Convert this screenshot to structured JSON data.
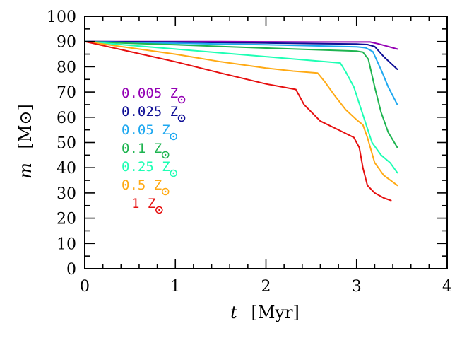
{
  "chart_data": {
    "type": "line",
    "title": "",
    "xlabel": {
      "var": "t",
      "unit": "[Myr]"
    },
    "ylabel": {
      "var": "m",
      "unit": "[M⊙]"
    },
    "xlim": [
      0,
      4
    ],
    "ylim": [
      0,
      100
    ],
    "x_ticks": [
      0,
      1,
      2,
      3,
      4
    ],
    "y_ticks": [
      0,
      10,
      20,
      30,
      40,
      50,
      60,
      70,
      80,
      90,
      100
    ],
    "x_tick_labels": [
      "0",
      "1",
      "2",
      "3",
      "4"
    ],
    "y_tick_labels": [
      "0",
      "10",
      "20",
      "30",
      "40",
      "50",
      "60",
      "70",
      "80",
      "90",
      "100"
    ],
    "grid": false,
    "legend_position": "left-middle",
    "series": [
      {
        "name": "0.005 Z⊙",
        "label": "0.005 Z",
        "color": "#9400b4",
        "x": [
          0,
          0.5,
          1.0,
          1.5,
          2.0,
          2.5,
          3.0,
          3.15,
          3.25,
          3.45
        ],
        "y": [
          90,
          90,
          90,
          90,
          89.9,
          89.8,
          89.8,
          89.8,
          89,
          87
        ]
      },
      {
        "name": "0.025 Z⊙",
        "label": "0.025 Z",
        "color": "#0f0f96",
        "x": [
          0,
          0.5,
          1.0,
          1.5,
          2.0,
          2.5,
          3.0,
          3.12,
          3.2,
          3.3,
          3.45
        ],
        "y": [
          90,
          89.9,
          89.8,
          89.6,
          89.4,
          89.2,
          89.0,
          88.8,
          88,
          84,
          79
        ]
      },
      {
        "name": "0.05 Z⊙",
        "label": "0.05 Z",
        "color": "#1ea8f0",
        "x": [
          0,
          0.5,
          1.0,
          1.5,
          2.0,
          2.5,
          3.0,
          3.1,
          3.18,
          3.28,
          3.35,
          3.45
        ],
        "y": [
          90,
          89.6,
          89.3,
          89,
          88.7,
          88.3,
          87.9,
          87.5,
          86,
          78,
          72,
          65
        ]
      },
      {
        "name": "0.1 Z⊙",
        "label": "0.1 Z",
        "color": "#1eb450",
        "x": [
          0,
          0.5,
          1.0,
          1.5,
          2.0,
          2.5,
          3.0,
          3.07,
          3.13,
          3.2,
          3.27,
          3.35,
          3.45
        ],
        "y": [
          90,
          89.3,
          88.7,
          88,
          87.4,
          86.8,
          86.2,
          85.8,
          83,
          72,
          62,
          54,
          48
        ]
      },
      {
        "name": "0.25 Z⊙",
        "label": "0.25 Z",
        "color": "#1effb4",
        "x": [
          0,
          0.5,
          1.0,
          1.5,
          2.0,
          2.5,
          2.82,
          2.88,
          2.97,
          3.07,
          3.17,
          3.27,
          3.37,
          3.45
        ],
        "y": [
          90,
          88.5,
          87,
          85.5,
          84,
          82.5,
          81.5,
          78,
          72,
          61,
          50,
          45,
          42,
          38
        ]
      },
      {
        "name": "0.5 Z⊙",
        "label": "0.5 Z",
        "color": "#ffaa14",
        "x": [
          0,
          0.5,
          1.0,
          1.5,
          2.0,
          2.3,
          2.57,
          2.65,
          2.75,
          2.88,
          3.0,
          3.07,
          3.12,
          3.2,
          3.3,
          3.45
        ],
        "y": [
          90,
          87.5,
          85,
          82,
          79.5,
          78.3,
          77.5,
          74,
          69,
          63,
          59,
          57,
          52,
          42,
          37,
          33
        ]
      },
      {
        "name": "1 Z⊙",
        "label": "1 Z",
        "color": "#e60f0f",
        "x": [
          0,
          0.5,
          1.0,
          1.5,
          2.0,
          2.33,
          2.42,
          2.6,
          2.8,
          2.97,
          3.03,
          3.07,
          3.12,
          3.2,
          3.3,
          3.38
        ],
        "y": [
          90,
          86,
          82,
          77.5,
          73.2,
          71,
          65,
          58.5,
          55,
          52,
          48,
          40,
          33,
          30,
          28,
          27
        ]
      }
    ]
  }
}
